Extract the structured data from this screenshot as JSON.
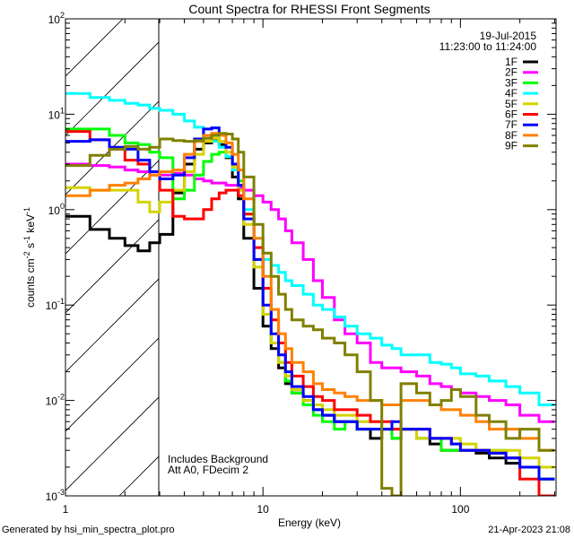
{
  "chart_data": {
    "type": "line",
    "step": true,
    "title": "Count Spectra for RHESSI Front Segments",
    "xlabel": "Energy (keV)",
    "ylabel": "counts cm",
    "ylabel_parts": [
      "counts cm",
      "-2",
      " s",
      "-1",
      " keV",
      "-1"
    ],
    "xscale": "log",
    "yscale": "log",
    "xlim": [
      1,
      305
    ],
    "ylim": [
      0.001,
      100
    ],
    "x_ticks": [
      {
        "value": 1,
        "label": "1"
      },
      {
        "value": 10,
        "label": "10"
      },
      {
        "value": 100,
        "label": "100"
      }
    ],
    "y_ticks": [
      {
        "value": 100,
        "base": "10",
        "exp": "2"
      },
      {
        "value": 10,
        "base": "10",
        "exp": "1"
      },
      {
        "value": 1,
        "base": "10",
        "exp": "0"
      },
      {
        "value": 0.1,
        "base": "10",
        "exp": "-1"
      },
      {
        "value": 0.01,
        "base": "10",
        "exp": "-2"
      },
      {
        "value": 0.001,
        "base": "10",
        "exp": "-3"
      }
    ],
    "hatched_region_keV": [
      1,
      3
    ],
    "legend": {
      "placement": "top-right",
      "date": "19-Jul-2015",
      "time_range": "11:23:00 to 11:24:00"
    },
    "annotations": [
      "Includes Background",
      "Att A0, FDecim 2"
    ],
    "energy_edges": [
      1,
      1.33,
      1.67,
      2,
      2.33,
      2.67,
      3,
      3.5,
      4,
      4.5,
      5,
      5.5,
      6,
      6.5,
      7,
      7.5,
      8,
      9,
      10,
      11,
      12,
      13,
      14,
      16,
      18,
      20,
      23,
      26,
      30,
      35,
      40,
      45,
      50,
      60,
      70,
      80,
      90,
      100,
      120,
      140,
      170,
      200,
      250,
      300
    ],
    "series": [
      {
        "name": "1F",
        "color": "#000000",
        "values": [
          0.85,
          0.62,
          0.5,
          0.42,
          0.37,
          0.45,
          0.55,
          1.5,
          3.0,
          4.3,
          5.0,
          5.5,
          4.8,
          3.5,
          2.2,
          1.3,
          0.5,
          0.15,
          0.06,
          0.035,
          0.022,
          0.015,
          0.012,
          0.01,
          0.008,
          0.007,
          0.006,
          0.006,
          0.005,
          0.004,
          0.005,
          0.004,
          0.005,
          0.004,
          0.0035,
          0.003,
          0.003,
          0.003,
          0.0028,
          0.0025,
          0.0022,
          0.002,
          0.0015
        ]
      },
      {
        "name": "2F",
        "color": "#ff00ff",
        "values": [
          3.0,
          2.9,
          2.8,
          2.6,
          2.5,
          2.3,
          2.3,
          2.4,
          2.3,
          2.1,
          2.0,
          1.9,
          1.9,
          1.8,
          1.8,
          1.7,
          1.6,
          1.4,
          1.2,
          1.0,
          0.8,
          0.6,
          0.45,
          0.3,
          0.18,
          0.12,
          0.07,
          0.05,
          0.04,
          0.025,
          0.022,
          0.022,
          0.02,
          0.018,
          0.015,
          0.014,
          0.013,
          0.012,
          0.011,
          0.01,
          0.009,
          0.007,
          0.006
        ]
      },
      {
        "name": "3F",
        "color": "#00ff00",
        "values": [
          7.0,
          7.0,
          6.0,
          5.0,
          4.8,
          4.0,
          3.5,
          1.3,
          1.6,
          2.3,
          3.2,
          3.8,
          4.0,
          3.6,
          3.0,
          2.0,
          0.9,
          0.3,
          0.08,
          0.04,
          0.025,
          0.016,
          0.012,
          0.009,
          0.007,
          0.006,
          0.005,
          0.006,
          0.005,
          0.005,
          0.005,
          0.004,
          0.005,
          0.004,
          0.004,
          0.003,
          0.003,
          0.003,
          0.003,
          0.003,
          0.0025,
          0.002,
          0.0015
        ]
      },
      {
        "name": "4F",
        "color": "#00ffff",
        "values": [
          16.5,
          15,
          14,
          13,
          12.5,
          11.5,
          11,
          10,
          8.5,
          7.3,
          6,
          5.2,
          4.5,
          3.6,
          2.6,
          1.8,
          1.0,
          0.5,
          0.3,
          0.26,
          0.22,
          0.18,
          0.16,
          0.13,
          0.1,
          0.09,
          0.075,
          0.06,
          0.05,
          0.045,
          0.038,
          0.035,
          0.03,
          0.03,
          0.025,
          0.024,
          0.022,
          0.019,
          0.018,
          0.016,
          0.014,
          0.012,
          0.009
        ]
      },
      {
        "name": "5F",
        "color": "#d4d400",
        "values": [
          1.7,
          1.6,
          1.6,
          1.6,
          1.2,
          0.95,
          1.2,
          1.6,
          2.5,
          3.8,
          5.2,
          5.6,
          5.2,
          4.0,
          2.8,
          1.6,
          0.7,
          0.25,
          0.08,
          0.04,
          0.025,
          0.018,
          0.013,
          0.01,
          0.009,
          0.008,
          0.007,
          0.007,
          0.006,
          0.006,
          0.005,
          0.005,
          0.005,
          0.004,
          0.004,
          0.004,
          0.004,
          0.0035,
          0.003,
          0.003,
          0.003,
          0.0025,
          0.002
        ]
      },
      {
        "name": "6F",
        "color": "#ff0000",
        "values": [
          6.6,
          5.4,
          4.3,
          3.3,
          3.0,
          2.5,
          1.6,
          0.85,
          0.8,
          0.8,
          1.0,
          1.3,
          1.5,
          1.6,
          1.6,
          1.4,
          0.9,
          0.4,
          0.15,
          0.07,
          0.04,
          0.025,
          0.018,
          0.014,
          0.011,
          0.01,
          0.008,
          0.008,
          0.007,
          0.006,
          0.006,
          0.005,
          0.005,
          0.005,
          0.004,
          0.004,
          0.0035,
          0.003,
          0.003,
          0.0028,
          0.0025,
          0.0015,
          0.001
        ]
      },
      {
        "name": "7F",
        "color": "#0000ff",
        "values": [
          5.2,
          5.4,
          4.5,
          4.3,
          3.3,
          2.5,
          2.1,
          2.3,
          3.5,
          5.5,
          7.0,
          7.2,
          6.0,
          4.5,
          3.0,
          1.8,
          0.8,
          0.3,
          0.1,
          0.05,
          0.03,
          0.02,
          0.014,
          0.011,
          0.008,
          0.007,
          0.006,
          0.006,
          0.005,
          0.005,
          0.005,
          0.006,
          0.005,
          0.005,
          0.004,
          0.004,
          0.0035,
          0.003,
          0.003,
          0.0028,
          0.0025,
          0.002,
          0.0015
        ]
      },
      {
        "name": "8F",
        "color": "#ff8000",
        "values": [
          1.4,
          1.6,
          1.8,
          1.9,
          2.1,
          2.3,
          2.5,
          2.6,
          3.8,
          5.2,
          6.0,
          6.3,
          6.0,
          5.0,
          3.8,
          2.6,
          1.3,
          0.5,
          0.2,
          0.09,
          0.05,
          0.035,
          0.025,
          0.02,
          0.015,
          0.013,
          0.012,
          0.011,
          0.01,
          0.01,
          0.009,
          0.009,
          0.01,
          0.01,
          0.009,
          0.008,
          0.008,
          0.007,
          0.006,
          0.005,
          0.005,
          0.004,
          0.003
        ]
      },
      {
        "name": "9F",
        "color": "#808000",
        "values": [
          2.9,
          3.7,
          4.3,
          4.6,
          4.3,
          4.5,
          5.5,
          5.3,
          5.2,
          5.3,
          5.6,
          6.0,
          6.3,
          6.2,
          5.5,
          4.0,
          2.2,
          0.7,
          0.35,
          0.2,
          0.13,
          0.09,
          0.07,
          0.06,
          0.055,
          0.045,
          0.04,
          0.03,
          0.02,
          0.01,
          0.0012,
          0.001,
          0.015,
          0.012,
          0.009,
          0.01,
          0.013,
          0.011,
          0.007,
          0.006,
          0.004,
          0.005,
          0.003
        ]
      }
    ]
  },
  "footer": {
    "generated_by": "Generated by hsi_min_spectra_plot.pro",
    "timestamp": "21-Apr-2023 21:08"
  }
}
